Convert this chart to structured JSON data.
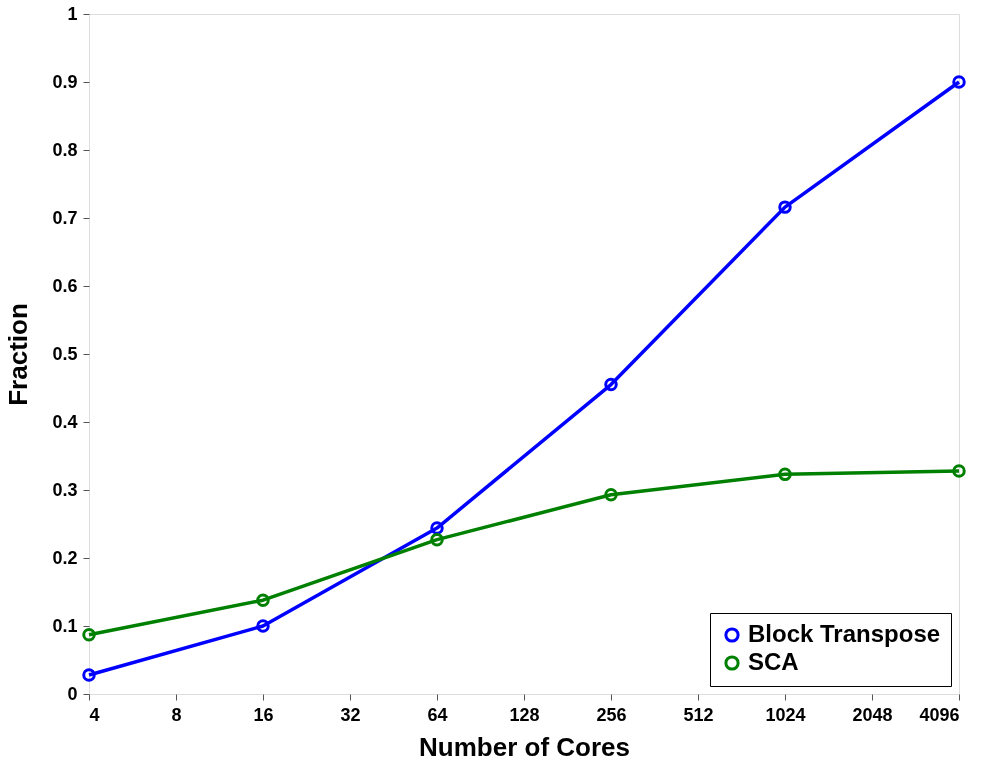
{
  "chart_data": {
    "type": "line",
    "xlabel": "Number of Cores",
    "ylabel": "Fraction",
    "x": [
      4,
      16,
      64,
      256,
      1024,
      4096
    ],
    "series": [
      {
        "name": "Block Transpose",
        "color": "#0000ff",
        "values": [
          0.028,
          0.1,
          0.244,
          0.455,
          0.716,
          0.9
        ]
      },
      {
        "name": "SCA",
        "color": "#008000",
        "values": [
          0.087,
          0.138,
          0.227,
          0.293,
          0.323,
          0.328
        ]
      }
    ],
    "log": "x",
    "xlim": [
      4,
      4096
    ],
    "xticks": [
      4,
      8,
      16,
      32,
      64,
      128,
      256,
      512,
      1024,
      2048,
      4096
    ],
    "ylim": [
      0,
      1
    ],
    "yticks": [
      0,
      0.1,
      0.2,
      0.3,
      0.4,
      0.5,
      0.6,
      0.7,
      0.8,
      0.9,
      1
    ],
    "grid": false,
    "legend": "bottom right",
    "marker": "circle",
    "line_style": "solid"
  }
}
